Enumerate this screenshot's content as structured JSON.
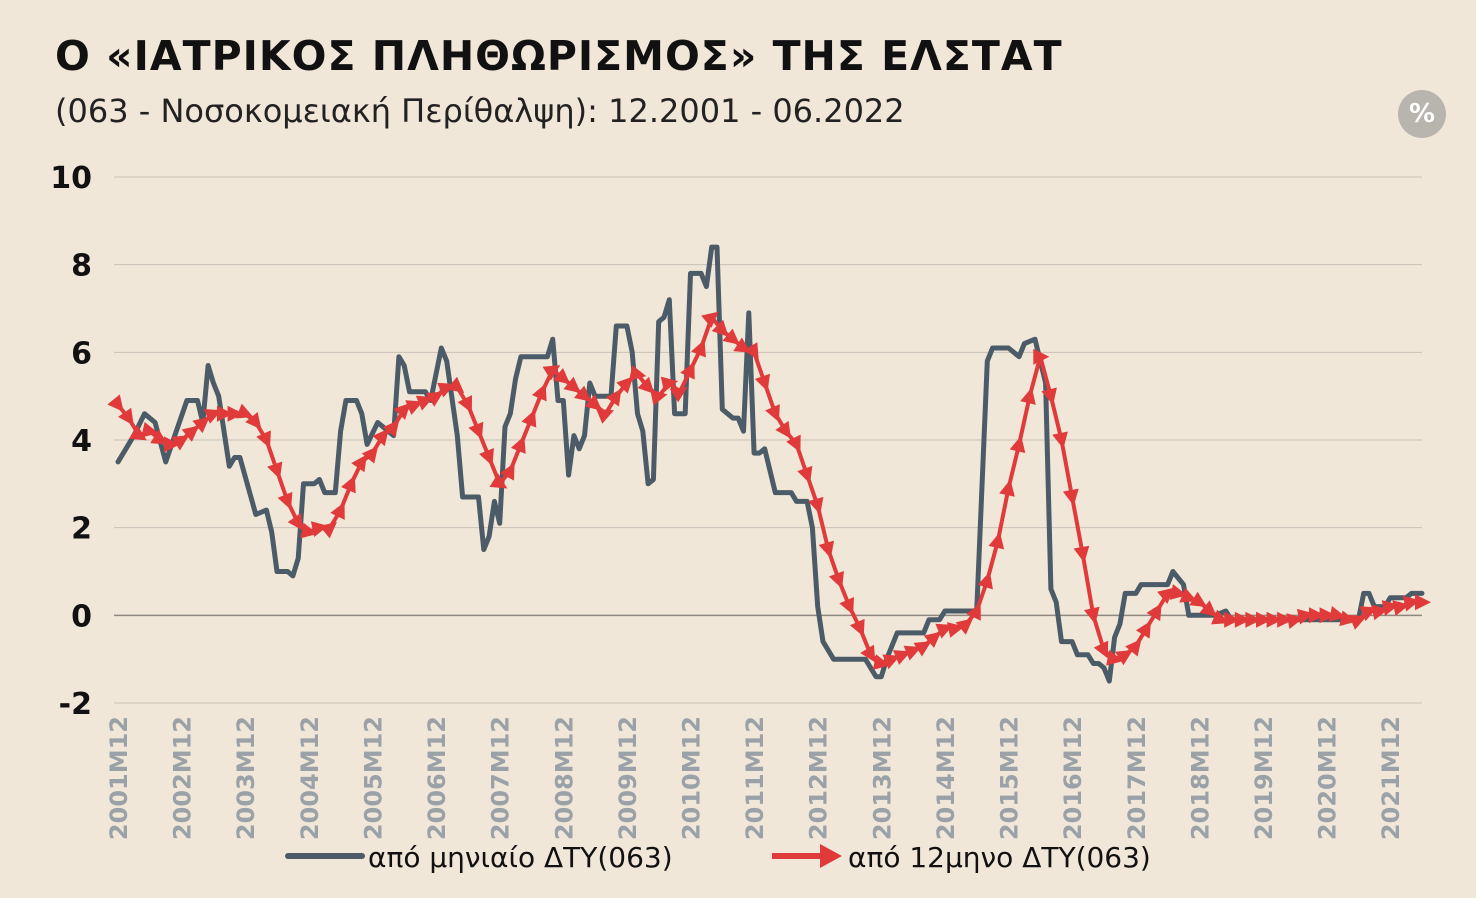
{
  "chart_data": {
    "type": "line",
    "title": "Ο «ΙΑΤΡΙΚΟΣ ΠΛΗΘΩΡΙΣΜΟΣ» ΤΗΣ ΕΛΣΤΑΤ",
    "subtitle": "(063 - Νοσοκομειακή Περίθαλψη): 12.2001 - 06.2022",
    "unit_badge": "%",
    "xlabel": "",
    "ylabel": "",
    "ylim": [
      -2,
      10
    ],
    "yticks": [
      "10",
      "8",
      "6",
      "4",
      "2",
      "0",
      "-2"
    ],
    "x_start": "2001-12",
    "x_end": "2022-06",
    "x_tick_labels": [
      "2001M12",
      "2002M12",
      "2003M12",
      "2004M12",
      "2005M12",
      "2006M12",
      "2007M12",
      "2008M12",
      "2009M12",
      "2010M12",
      "2011M12",
      "2012M12",
      "2013M12",
      "2014M12",
      "2015M12",
      "2016M12",
      "2017M12",
      "2018M12",
      "2019M12",
      "2020M12",
      "2021M12"
    ],
    "grid": true,
    "legend_position": "bottom",
    "colors": {
      "monthly": "#4b5b68",
      "annual": "#e03a3a",
      "grid": "#c9c2b8",
      "background": "#f1e7d8"
    },
    "series": [
      {
        "name": "από μηνιαίο ΔΤΥ(063)",
        "marker": "none",
        "points": [
          [
            "2001-12",
            3.5
          ],
          [
            "2002-03",
            4.1
          ],
          [
            "2002-05",
            4.6
          ],
          [
            "2002-07",
            4.4
          ],
          [
            "2002-09",
            3.5
          ],
          [
            "2002-11",
            4.2
          ],
          [
            "2003-01",
            4.9
          ],
          [
            "2003-03",
            4.9
          ],
          [
            "2003-04",
            4.4
          ],
          [
            "2003-05",
            5.7
          ],
          [
            "2003-06",
            5.3
          ],
          [
            "2003-07",
            5.0
          ],
          [
            "2003-09",
            3.4
          ],
          [
            "2003-10",
            3.6
          ],
          [
            "2003-11",
            3.6
          ],
          [
            "2004-02",
            2.3
          ],
          [
            "2004-04",
            2.4
          ],
          [
            "2004-05",
            1.9
          ],
          [
            "2004-06",
            1.0
          ],
          [
            "2004-08",
            1.0
          ],
          [
            "2004-09",
            0.9
          ],
          [
            "2004-10",
            1.3
          ],
          [
            "2004-11",
            3.0
          ],
          [
            "2005-01",
            3.0
          ],
          [
            "2005-02",
            3.1
          ],
          [
            "2005-03",
            2.8
          ],
          [
            "2005-05",
            2.8
          ],
          [
            "2005-06",
            4.2
          ],
          [
            "2005-07",
            4.9
          ],
          [
            "2005-09",
            4.9
          ],
          [
            "2005-10",
            4.6
          ],
          [
            "2005-11",
            3.9
          ],
          [
            "2006-01",
            4.4
          ],
          [
            "2006-04",
            4.1
          ],
          [
            "2006-05",
            5.9
          ],
          [
            "2006-06",
            5.7
          ],
          [
            "2006-07",
            5.1
          ],
          [
            "2006-10",
            5.1
          ],
          [
            "2006-11",
            4.9
          ],
          [
            "2007-01",
            6.1
          ],
          [
            "2007-02",
            5.8
          ],
          [
            "2007-04",
            4.1
          ],
          [
            "2007-05",
            2.7
          ],
          [
            "2007-08",
            2.7
          ],
          [
            "2007-09",
            1.5
          ],
          [
            "2007-10",
            1.8
          ],
          [
            "2007-11",
            2.6
          ],
          [
            "2007-12",
            2.1
          ],
          [
            "2008-01",
            4.3
          ],
          [
            "2008-02",
            4.6
          ],
          [
            "2008-03",
            5.4
          ],
          [
            "2008-04",
            5.9
          ],
          [
            "2008-09",
            5.9
          ],
          [
            "2008-10",
            6.3
          ],
          [
            "2008-11",
            4.9
          ],
          [
            "2008-12",
            4.9
          ],
          [
            "2009-01",
            3.2
          ],
          [
            "2009-02",
            4.1
          ],
          [
            "2009-03",
            3.8
          ],
          [
            "2009-04",
            4.1
          ],
          [
            "2009-05",
            5.3
          ],
          [
            "2009-06",
            5.0
          ],
          [
            "2009-09",
            5.0
          ],
          [
            "2009-10",
            6.6
          ],
          [
            "2009-12",
            6.6
          ],
          [
            "2010-01",
            6.0
          ],
          [
            "2010-02",
            4.6
          ],
          [
            "2010-03",
            4.2
          ],
          [
            "2010-04",
            3.0
          ],
          [
            "2010-05",
            3.1
          ],
          [
            "2010-06",
            6.7
          ],
          [
            "2010-07",
            6.8
          ],
          [
            "2010-08",
            7.2
          ],
          [
            "2010-09",
            4.6
          ],
          [
            "2010-11",
            4.6
          ],
          [
            "2010-12",
            7.8
          ],
          [
            "2011-02",
            7.8
          ],
          [
            "2011-03",
            7.5
          ],
          [
            "2011-04",
            8.4
          ],
          [
            "2011-05",
            8.4
          ],
          [
            "2011-06",
            4.7
          ],
          [
            "2011-08",
            4.5
          ],
          [
            "2011-09",
            4.5
          ],
          [
            "2011-10",
            4.2
          ],
          [
            "2011-11",
            6.9
          ],
          [
            "2011-12",
            3.7
          ],
          [
            "2012-01",
            3.7
          ],
          [
            "2012-02",
            3.8
          ],
          [
            "2012-04",
            2.8
          ],
          [
            "2012-07",
            2.8
          ],
          [
            "2012-08",
            2.6
          ],
          [
            "2012-09",
            2.6
          ],
          [
            "2012-10",
            2.6
          ],
          [
            "2012-11",
            2.0
          ],
          [
            "2012-12",
            0.2
          ],
          [
            "2013-01",
            -0.6
          ],
          [
            "2013-03",
            -1.0
          ],
          [
            "2013-09",
            -1.0
          ],
          [
            "2013-10",
            -1.2
          ],
          [
            "2013-11",
            -1.4
          ],
          [
            "2013-12",
            -1.4
          ],
          [
            "2014-01",
            -1.0
          ],
          [
            "2014-03",
            -0.4
          ],
          [
            "2014-08",
            -0.4
          ],
          [
            "2014-09",
            -0.1
          ],
          [
            "2014-11",
            -0.1
          ],
          [
            "2014-12",
            0.1
          ],
          [
            "2015-06",
            0.1
          ],
          [
            "2015-08",
            5.8
          ],
          [
            "2015-09",
            6.1
          ],
          [
            "2015-12",
            6.1
          ],
          [
            "2016-02",
            5.9
          ],
          [
            "2016-03",
            6.2
          ],
          [
            "2016-05",
            6.3
          ],
          [
            "2016-07",
            5.3
          ],
          [
            "2016-08",
            0.6
          ],
          [
            "2016-09",
            0.3
          ],
          [
            "2016-10",
            -0.6
          ],
          [
            "2016-12",
            -0.6
          ],
          [
            "2017-01",
            -0.9
          ],
          [
            "2017-03",
            -0.9
          ],
          [
            "2017-04",
            -1.1
          ],
          [
            "2017-05",
            -1.1
          ],
          [
            "2017-06",
            -1.2
          ],
          [
            "2017-07",
            -1.5
          ],
          [
            "2017-08",
            -0.5
          ],
          [
            "2017-09",
            -0.2
          ],
          [
            "2017-10",
            0.5
          ],
          [
            "2017-12",
            0.5
          ],
          [
            "2018-01",
            0.7
          ],
          [
            "2018-06",
            0.7
          ],
          [
            "2018-07",
            1.0
          ],
          [
            "2018-09",
            0.7
          ],
          [
            "2018-10",
            0.0
          ],
          [
            "2018-11",
            0.0
          ],
          [
            "2019-03",
            0.0
          ],
          [
            "2019-05",
            0.1
          ],
          [
            "2019-06",
            -0.1
          ],
          [
            "2019-12",
            -0.1
          ],
          [
            "2020-12",
            -0.1
          ],
          [
            "2021-06",
            -0.1
          ],
          [
            "2021-07",
            0.5
          ],
          [
            "2021-08",
            0.5
          ],
          [
            "2021-09",
            0.2
          ],
          [
            "2021-11",
            0.2
          ],
          [
            "2021-12",
            0.4
          ],
          [
            "2022-03",
            0.4
          ],
          [
            "2022-04",
            0.5
          ],
          [
            "2022-06",
            0.5
          ]
        ]
      },
      {
        "name": "από 12μηνο ΔΤΥ(063)",
        "marker": "triangle",
        "points": [
          [
            "2001-12",
            4.8
          ],
          [
            "2002-02",
            4.5
          ],
          [
            "2002-04",
            4.1
          ],
          [
            "2002-06",
            4.2
          ],
          [
            "2002-08",
            4.0
          ],
          [
            "2002-10",
            3.9
          ],
          [
            "2002-12",
            4.0
          ],
          [
            "2003-02",
            4.2
          ],
          [
            "2003-04",
            4.4
          ],
          [
            "2003-06",
            4.6
          ],
          [
            "2003-08",
            4.6
          ],
          [
            "2003-10",
            4.6
          ],
          [
            "2003-12",
            4.6
          ],
          [
            "2004-02",
            4.4
          ],
          [
            "2004-04",
            4.0
          ],
          [
            "2004-06",
            3.3
          ],
          [
            "2004-08",
            2.6
          ],
          [
            "2004-10",
            2.1
          ],
          [
            "2004-12",
            1.9
          ],
          [
            "2005-02",
            2.0
          ],
          [
            "2005-04",
            2.0
          ],
          [
            "2005-06",
            2.4
          ],
          [
            "2005-08",
            3.0
          ],
          [
            "2005-10",
            3.5
          ],
          [
            "2005-12",
            3.7
          ],
          [
            "2006-02",
            4.1
          ],
          [
            "2006-04",
            4.3
          ],
          [
            "2006-06",
            4.7
          ],
          [
            "2006-08",
            4.8
          ],
          [
            "2006-10",
            4.9
          ],
          [
            "2006-12",
            5.0
          ],
          [
            "2007-02",
            5.2
          ],
          [
            "2007-04",
            5.2
          ],
          [
            "2007-06",
            4.8
          ],
          [
            "2007-08",
            4.2
          ],
          [
            "2007-10",
            3.6
          ],
          [
            "2007-12",
            3.0
          ],
          [
            "2008-02",
            3.3
          ],
          [
            "2008-04",
            3.9
          ],
          [
            "2008-06",
            4.5
          ],
          [
            "2008-08",
            5.1
          ],
          [
            "2008-10",
            5.6
          ],
          [
            "2008-12",
            5.4
          ],
          [
            "2009-02",
            5.2
          ],
          [
            "2009-04",
            5.0
          ],
          [
            "2009-06",
            4.8
          ],
          [
            "2009-08",
            4.6
          ],
          [
            "2009-10",
            5.0
          ],
          [
            "2009-12",
            5.3
          ],
          [
            "2010-02",
            5.5
          ],
          [
            "2010-04",
            5.2
          ],
          [
            "2010-06",
            5.0
          ],
          [
            "2010-08",
            5.3
          ],
          [
            "2010-10",
            5.1
          ],
          [
            "2010-12",
            5.6
          ],
          [
            "2011-02",
            6.1
          ],
          [
            "2011-04",
            6.8
          ],
          [
            "2011-06",
            6.5
          ],
          [
            "2011-08",
            6.3
          ],
          [
            "2011-10",
            6.1
          ],
          [
            "2011-12",
            6.0
          ],
          [
            "2012-02",
            5.3
          ],
          [
            "2012-04",
            4.6
          ],
          [
            "2012-06",
            4.2
          ],
          [
            "2012-08",
            3.9
          ],
          [
            "2012-10",
            3.2
          ],
          [
            "2012-12",
            2.5
          ],
          [
            "2013-02",
            1.5
          ],
          [
            "2013-04",
            0.8
          ],
          [
            "2013-06",
            0.2
          ],
          [
            "2013-08",
            -0.3
          ],
          [
            "2013-10",
            -0.9
          ],
          [
            "2013-12",
            -1.1
          ],
          [
            "2014-02",
            -1.0
          ],
          [
            "2014-04",
            -0.9
          ],
          [
            "2014-06",
            -0.8
          ],
          [
            "2014-08",
            -0.7
          ],
          [
            "2014-10",
            -0.5
          ],
          [
            "2014-12",
            -0.3
          ],
          [
            "2015-02",
            -0.3
          ],
          [
            "2015-04",
            -0.2
          ],
          [
            "2015-06",
            0.1
          ],
          [
            "2015-08",
            0.8
          ],
          [
            "2015-10",
            1.7
          ],
          [
            "2015-12",
            2.9
          ],
          [
            "2016-02",
            3.9
          ],
          [
            "2016-04",
            5.0
          ],
          [
            "2016-06",
            5.9
          ],
          [
            "2016-08",
            5.0
          ],
          [
            "2016-10",
            4.0
          ],
          [
            "2016-12",
            2.7
          ],
          [
            "2017-02",
            1.4
          ],
          [
            "2017-04",
            0.0
          ],
          [
            "2017-06",
            -0.8
          ],
          [
            "2017-08",
            -1.0
          ],
          [
            "2017-10",
            -0.9
          ],
          [
            "2017-12",
            -0.7
          ],
          [
            "2018-02",
            -0.3
          ],
          [
            "2018-04",
            0.1
          ],
          [
            "2018-06",
            0.5
          ],
          [
            "2018-08",
            0.5
          ],
          [
            "2018-10",
            0.4
          ],
          [
            "2018-12",
            0.3
          ],
          [
            "2019-02",
            0.1
          ],
          [
            "2019-04",
            -0.1
          ],
          [
            "2019-06",
            -0.1
          ],
          [
            "2019-08",
            -0.1
          ],
          [
            "2019-10",
            -0.1
          ],
          [
            "2019-12",
            -0.1
          ],
          [
            "2020-02",
            -0.1
          ],
          [
            "2020-04",
            -0.1
          ],
          [
            "2020-06",
            -0.1
          ],
          [
            "2020-08",
            0.0
          ],
          [
            "2020-10",
            0.0
          ],
          [
            "2020-12",
            0.0
          ],
          [
            "2021-02",
            0.0
          ],
          [
            "2021-04",
            -0.1
          ],
          [
            "2021-06",
            -0.1
          ],
          [
            "2021-08",
            0.1
          ],
          [
            "2021-10",
            0.1
          ],
          [
            "2021-12",
            0.2
          ],
          [
            "2022-02",
            0.2
          ],
          [
            "2022-04",
            0.3
          ],
          [
            "2022-06",
            0.3
          ]
        ]
      }
    ]
  }
}
